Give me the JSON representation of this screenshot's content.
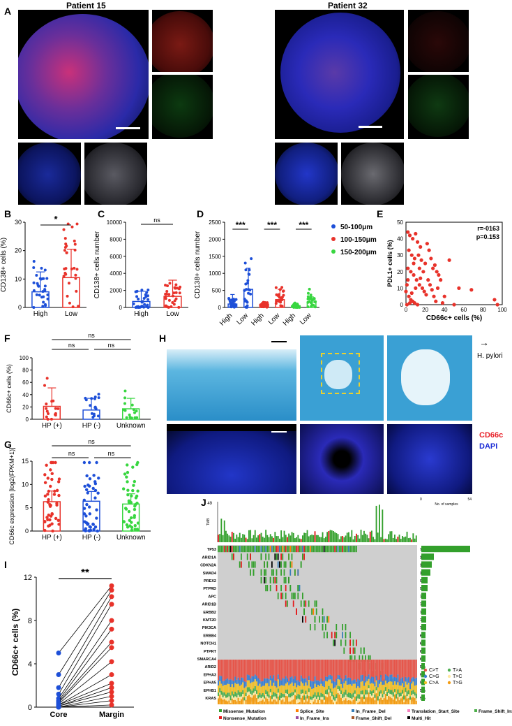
{
  "panels": {
    "A": "A",
    "B": "B",
    "C": "C",
    "D": "D",
    "E": "E",
    "F": "F",
    "G": "G",
    "H": "H",
    "I": "I",
    "J": "J"
  },
  "panel_a": {
    "patient_left": "Patient 15",
    "patient_right": "Patient 32"
  },
  "panel_h": {
    "arrow_label": "H. pylori",
    "legend_cd66c": "CD66c",
    "legend_dapi": "DAPI",
    "cd66c_color": "#e8222a",
    "dapi_color": "#1a2bd6"
  },
  "colors": {
    "red": "#e8322a",
    "blue": "#1d4fd8",
    "green": "#38d640",
    "mutation_green": "#33a02c",
    "missense": "#33a02c",
    "nonsense": "#e41a1c",
    "splice": "#ff7f00",
    "frame_del": "#377eb8",
    "multi": "#000000"
  },
  "chart_data": [
    {
      "id": "B",
      "type": "bar",
      "categories": [
        "High",
        "Low"
      ],
      "values": [
        5.5,
        10.5
      ],
      "sd": [
        7,
        10
      ],
      "ylabel": "CD138+ cells (%)",
      "ylim": [
        0,
        30
      ],
      "yticks": [
        0,
        10,
        20,
        30
      ],
      "significance": "*",
      "colors": [
        "#1d4fd8",
        "#e8322a"
      ]
    },
    {
      "id": "C",
      "type": "bar",
      "categories": [
        "High",
        "Low"
      ],
      "values": [
        700,
        1300
      ],
      "sd": [
        1200,
        1900
      ],
      "ylabel": "CD138+ cells number",
      "ylim": [
        0,
        10000
      ],
      "yticks": [
        0,
        2000,
        4000,
        6000,
        8000,
        10000
      ],
      "significance": "ns",
      "colors": [
        "#1d4fd8",
        "#e8322a"
      ]
    },
    {
      "id": "D",
      "type": "bar",
      "categories": [
        "High",
        "Low",
        "High",
        "Low",
        "High",
        "Low"
      ],
      "values": [
        100,
        530,
        60,
        230,
        50,
        160
      ],
      "sd": [
        280,
        620,
        40,
        300,
        30,
        150
      ],
      "ylabel": "CD138+ cells number",
      "ylim": [
        0,
        2500
      ],
      "yticks": [
        0,
        500,
        1000,
        1500,
        2000,
        2500
      ],
      "significance": [
        "***",
        "***",
        "***"
      ],
      "legend": [
        {
          "label": "50-100μm",
          "color": "#1d4fd8"
        },
        {
          "label": "100-150μm",
          "color": "#e8322a"
        },
        {
          "label": "150-200μm",
          "color": "#38d640"
        }
      ],
      "bar_colors": [
        "#1d4fd8",
        "#1d4fd8",
        "#e8322a",
        "#e8322a",
        "#38d640",
        "#38d640"
      ]
    },
    {
      "id": "E",
      "type": "scatter",
      "xlabel": "CD66c+ cells (%)",
      "ylabel": "PDL1+ cells (%)",
      "xlim": [
        0,
        100
      ],
      "ylim": [
        0,
        50
      ],
      "xticks": [
        0,
        20,
        40,
        60,
        80,
        100
      ],
      "yticks": [
        0,
        10,
        20,
        30,
        40,
        50
      ],
      "annotation": [
        "r=-0163",
        "p=0.153"
      ],
      "points": [
        [
          2,
          44
        ],
        [
          4,
          42
        ],
        [
          7,
          40
        ],
        [
          10,
          43
        ],
        [
          12,
          38
        ],
        [
          15,
          35
        ],
        [
          3,
          33
        ],
        [
          6,
          30
        ],
        [
          9,
          28
        ],
        [
          13,
          30
        ],
        [
          16,
          27
        ],
        [
          20,
          25
        ],
        [
          22,
          37
        ],
        [
          24,
          33
        ],
        [
          26,
          28
        ],
        [
          28,
          22
        ],
        [
          30,
          24
        ],
        [
          32,
          20
        ],
        [
          34,
          18
        ],
        [
          36,
          15
        ],
        [
          2,
          22
        ],
        [
          5,
          20
        ],
        [
          8,
          18
        ],
        [
          11,
          15
        ],
        [
          14,
          12
        ],
        [
          17,
          10
        ],
        [
          19,
          8
        ],
        [
          21,
          6
        ],
        [
          3,
          5
        ],
        [
          5,
          3
        ],
        [
          7,
          2
        ],
        [
          9,
          1
        ],
        [
          12,
          0
        ],
        [
          1,
          0
        ],
        [
          4,
          1
        ],
        [
          6,
          7
        ],
        [
          10,
          10
        ],
        [
          15,
          16
        ],
        [
          18,
          20
        ],
        [
          25,
          12
        ],
        [
          27,
          9
        ],
        [
          29,
          5
        ],
        [
          31,
          2
        ],
        [
          40,
          5
        ],
        [
          45,
          27
        ],
        [
          50,
          0
        ],
        [
          55,
          10
        ],
        [
          68,
          9
        ],
        [
          92,
          3
        ],
        [
          95,
          0
        ],
        [
          38,
          1
        ],
        [
          33,
          10
        ],
        [
          23,
          15
        ],
        [
          14,
          22
        ],
        [
          8,
          25
        ],
        [
          2,
          15
        ],
        [
          0,
          8
        ],
        [
          1,
          12
        ]
      ]
    },
    {
      "id": "F",
      "type": "bar",
      "categories": [
        "HP (+)",
        "HP (-)",
        "Unknown"
      ],
      "values": [
        21,
        15,
        17
      ],
      "sd": [
        30,
        19,
        17
      ],
      "ylabel": "CD66c+ cells (%)",
      "ylim": [
        0,
        100
      ],
      "yticks": [
        0,
        20,
        40,
        60,
        80,
        100
      ],
      "significance": [
        "ns",
        "ns",
        "ns"
      ],
      "colors": [
        "#e8322a",
        "#1d4fd8",
        "#38d640"
      ]
    },
    {
      "id": "G",
      "type": "bar",
      "categories": [
        "HP (+)",
        "HP (-)",
        "Unknown"
      ],
      "values": [
        6.3,
        6.4,
        5.8
      ],
      "sd": [
        2.3,
        2.1,
        2.2
      ],
      "ylabel": "CD66c expression [log2(FPKM+1)]",
      "ylim": [
        0,
        15
      ],
      "yticks": [
        0,
        5,
        10,
        15
      ],
      "significance": [
        "ns",
        "ns",
        "ns"
      ],
      "colors": [
        "#e8322a",
        "#1d4fd8",
        "#38d640"
      ]
    },
    {
      "id": "I",
      "type": "line",
      "categories": [
        "Core",
        "Margin"
      ],
      "ylabel": "CD66c+ cells (%)",
      "ylim": [
        0,
        12
      ],
      "yticks": [
        0,
        4,
        8,
        12
      ],
      "significance": "**",
      "pairs": [
        [
          5.0,
          11.2
        ],
        [
          3.0,
          10.8
        ],
        [
          1.8,
          10.2
        ],
        [
          1.2,
          9.5
        ],
        [
          0.8,
          8.0
        ],
        [
          0.6,
          7.2
        ],
        [
          0.5,
          6.0
        ],
        [
          0.4,
          5.5
        ],
        [
          0.3,
          4.2
        ],
        [
          0.2,
          3.0
        ],
        [
          0.2,
          2.2
        ],
        [
          0.1,
          1.8
        ],
        [
          0.1,
          1.4
        ],
        [
          0.0,
          1.0
        ],
        [
          0.0,
          0.6
        ],
        [
          0.0,
          0.2
        ]
      ]
    },
    {
      "id": "J",
      "type": "heatmap",
      "genes": [
        "TP53",
        "ARID1A",
        "CDKN2A",
        "SMAD4",
        "PREX2",
        "PTPRD",
        "APC",
        "ARID1B",
        "ERBB2",
        "KMT2D",
        "PIK3CA",
        "ERBB4",
        "NOTCH1",
        "PTPRT",
        "SMARCA4",
        "ARID2",
        "EPHA3",
        "EPHA5",
        "EPHB1",
        "KRAS"
      ],
      "percentages": [
        "70%",
        "18%",
        "15%",
        "13%",
        "9%",
        "9%",
        "7%",
        "7%",
        "7%",
        "7%",
        "7%",
        "6%",
        "6%",
        "6%",
        "6%",
        "5%",
        "5%",
        "5%",
        "5%",
        "5%"
      ],
      "tmb_label": "TMB",
      "tmb_max": "49",
      "samples_axis": [
        "0",
        "54"
      ],
      "samples_title": "No. of samples",
      "snv_legend": [
        "C>T",
        "C>G",
        "C>A",
        "T>A",
        "T>C",
        "T>G"
      ],
      "snv_colors": [
        "#e6554a",
        "#3c7fd1",
        "#f2c029",
        "#4caf50",
        "#ffe9a0",
        "#f39c12"
      ],
      "legend": [
        "Missense_Mutation",
        "Nonsense_Mutation",
        "Splice_Site",
        "In_Frame_Ins",
        "In_Frame_Del",
        "Frame_Shift_Del",
        "Translation_Start_Site",
        "Multi_Hit",
        "Frame_Shift_Ins"
      ],
      "legend_colors": [
        "#33a02c",
        "#e41a1c",
        "#ff7f00",
        "#984ea3",
        "#377eb8",
        "#a65628",
        "#f781bf",
        "#000000",
        "#4daf4a"
      ]
    }
  ],
  "scalebar_color": "#ffffff"
}
